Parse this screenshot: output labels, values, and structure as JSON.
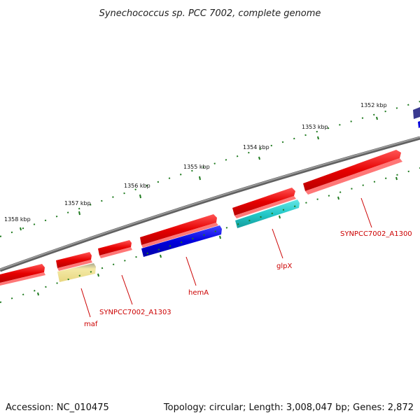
{
  "title": "Synechococcus sp. PCC 7002, complete genome",
  "footer": {
    "accession": "Accession: NC_010475",
    "summary": "Topology: circular; Length: 3,008,047 bp; Genes: 2,872"
  },
  "ticks": [
    "1352 kbp",
    "1353 kbp",
    "1354 kbp",
    "1355 kbp",
    "1356 kbp",
    "1357 kbp",
    "1358 kbp"
  ],
  "gene_labels": [
    "SYNPCC7002_A1300",
    "glpX",
    "hemA",
    "SYNPCC7002_A1303",
    "maf"
  ],
  "colors": {
    "backbone": "#808080",
    "tick_dots": "#1e7a1e",
    "gene_red": "#e60000",
    "gene_blue": "#0000dd",
    "gene_cyan": "#22c8c8",
    "gene_yellow": "#eee08a",
    "gene_navy": "#3a3a90",
    "label_red": "#cc0000"
  }
}
